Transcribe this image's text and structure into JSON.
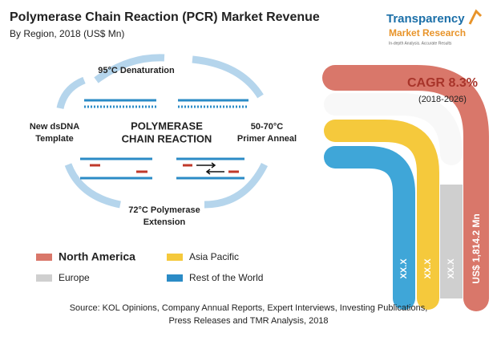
{
  "header": {
    "title": "Polymerase Chain Reaction (PCR) Market Revenue",
    "subtitle": "By Region, 2018 (US$ Mn)"
  },
  "logo": {
    "name_1": "Transparency",
    "name_2": "Market Research",
    "tagline": "In-depth Analysis. Accurate Results"
  },
  "diagram": {
    "top": "95°C Denaturation",
    "left": [
      "New dsDNA",
      "Template"
    ],
    "center": [
      "POLYMERASE",
      "CHAIN REACTION"
    ],
    "right": [
      "50-70°C",
      "Primer Anneal"
    ],
    "bottom": [
      "72°C Polymerase",
      "Extension"
    ]
  },
  "cagr": {
    "label": "CAGR 8.3%",
    "period": "(2018-2026)"
  },
  "bars": {
    "rest_of_world": "XX.X",
    "asia_pacific": "XX.X",
    "europe": "XX.X",
    "north_america": "US$ 1,814.2 Mn"
  },
  "legend": [
    "North America",
    "Asia Pacific",
    "Europe",
    "Rest of the World"
  ],
  "source": [
    "Source: KOL Opinions, Company Annual Reports, Expert Interviews, Investing Publications,",
    "Press Releases and TMR Analysis, 2018"
  ]
}
